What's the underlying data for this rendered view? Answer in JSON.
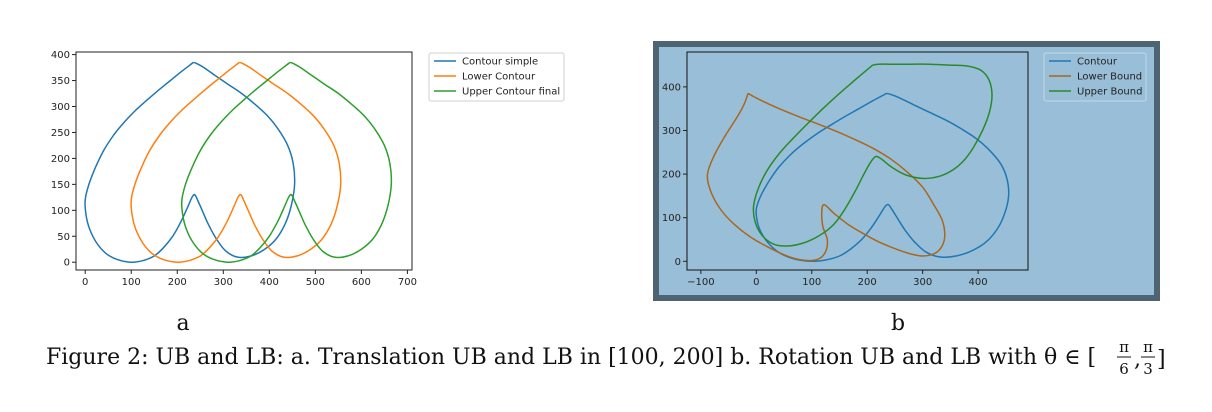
{
  "colors": {
    "blue": "#1f77b4",
    "orange": "#ff7f0e",
    "green": "#2ca02c",
    "brown": "#a8671e",
    "darkgreen": "#2a8a2a",
    "panel_b_bg": "#99bfd8",
    "panel_b_frame": "#4f6473"
  },
  "panel_a": {
    "letter": "a",
    "legend": [
      "Contour simple",
      "Lower Contour",
      "Upper Contour final"
    ]
  },
  "panel_b": {
    "letter": "b",
    "legend": [
      "Contour",
      "Lower Bound",
      "Upper Bound"
    ]
  },
  "caption": {
    "text": "Figure 2: UB and LB: a. Translation UB and LB in [100, 200] b. Rotation UB and LB with θ ∈ [",
    "frac1_num": "π",
    "frac1_den": "6",
    "sep": ",",
    "frac2_num": "π",
    "frac2_den": "3",
    "close": "]"
  },
  "chart_data": [
    {
      "type": "line",
      "xlim": [
        -20,
        710
      ],
      "ylim": [
        -15,
        405
      ],
      "xticks": [
        0,
        100,
        200,
        300,
        400,
        500,
        600,
        700
      ],
      "yticks": [
        0,
        50,
        100,
        150,
        200,
        250,
        300,
        350,
        400
      ],
      "grid": false,
      "legend_position": "outside-right",
      "series": [
        {
          "name": "Contour simple",
          "color": "blue",
          "x": [
            235,
            210,
            185,
            160,
            135,
            110,
            85,
            62,
            40,
            22,
            8,
            0,
            2,
            10,
            25,
            45,
            70,
            100,
            125,
            150,
            170,
            190,
            208,
            222,
            232,
            238,
            245,
            255,
            268,
            285,
            305,
            330,
            360,
            390,
            415,
            435,
            448,
            455,
            452,
            440,
            418,
            395,
            368,
            340,
            310,
            282,
            258,
            242,
            235
          ],
          "y": [
            385,
            368,
            350,
            332,
            313,
            293,
            270,
            245,
            215,
            182,
            150,
            120,
            90,
            63,
            37,
            17,
            5,
            0,
            3,
            12,
            28,
            50,
            78,
            105,
            125,
            130,
            118,
            98,
            72,
            45,
            22,
            10,
            12,
            25,
            45,
            75,
            110,
            150,
            190,
            225,
            258,
            283,
            305,
            325,
            343,
            360,
            375,
            383,
            385
          ]
        },
        {
          "name": "Lower Contour",
          "color": "orange",
          "x": [
            335,
            310,
            285,
            260,
            235,
            210,
            185,
            162,
            140,
            122,
            108,
            100,
            102,
            110,
            125,
            145,
            170,
            200,
            225,
            250,
            270,
            290,
            308,
            322,
            332,
            338,
            345,
            355,
            368,
            385,
            405,
            430,
            460,
            490,
            515,
            535,
            548,
            555,
            552,
            540,
            518,
            495,
            468,
            440,
            410,
            382,
            358,
            342,
            335
          ],
          "y": [
            385,
            368,
            350,
            332,
            313,
            293,
            270,
            245,
            215,
            182,
            150,
            120,
            90,
            63,
            37,
            17,
            5,
            0,
            3,
            12,
            28,
            50,
            78,
            105,
            125,
            130,
            118,
            98,
            72,
            45,
            22,
            10,
            12,
            25,
            45,
            75,
            110,
            150,
            190,
            225,
            258,
            283,
            305,
            325,
            343,
            360,
            375,
            383,
            385
          ]
        },
        {
          "name": "Upper Contour final",
          "color": "green",
          "x": [
            445,
            420,
            395,
            370,
            345,
            320,
            295,
            272,
            250,
            232,
            218,
            210,
            212,
            220,
            235,
            255,
            280,
            310,
            335,
            360,
            380,
            400,
            418,
            432,
            442,
            448,
            455,
            465,
            478,
            495,
            515,
            540,
            570,
            600,
            625,
            645,
            658,
            665,
            662,
            650,
            628,
            605,
            578,
            550,
            520,
            492,
            468,
            452,
            445
          ],
          "y": [
            385,
            368,
            350,
            332,
            313,
            293,
            270,
            245,
            215,
            182,
            150,
            120,
            90,
            63,
            37,
            17,
            5,
            0,
            3,
            12,
            28,
            50,
            78,
            105,
            125,
            130,
            118,
            98,
            72,
            45,
            22,
            10,
            12,
            25,
            45,
            75,
            110,
            150,
            190,
            225,
            258,
            283,
            305,
            325,
            343,
            360,
            375,
            383,
            385
          ]
        }
      ]
    },
    {
      "type": "line",
      "xlim": [
        -125,
        490
      ],
      "ylim": [
        -20,
        480
      ],
      "xticks": [
        -100,
        0,
        100,
        200,
        300,
        400
      ],
      "yticks": [
        0,
        100,
        200,
        300,
        400
      ],
      "grid": false,
      "legend_position": "top-right",
      "series": [
        {
          "name": "Contour",
          "color": "blue",
          "x": [
            235,
            210,
            185,
            160,
            135,
            110,
            85,
            62,
            40,
            22,
            8,
            0,
            2,
            10,
            25,
            45,
            70,
            100,
            125,
            150,
            170,
            190,
            208,
            222,
            232,
            238,
            245,
            255,
            268,
            285,
            305,
            330,
            360,
            390,
            415,
            435,
            448,
            455,
            452,
            440,
            418,
            395,
            368,
            340,
            310,
            282,
            258,
            242,
            235
          ],
          "y": [
            385,
            368,
            350,
            332,
            313,
            293,
            270,
            245,
            215,
            182,
            150,
            120,
            90,
            63,
            37,
            17,
            5,
            0,
            3,
            12,
            28,
            50,
            78,
            105,
            125,
            130,
            118,
            98,
            72,
            45,
            22,
            10,
            12,
            25,
            45,
            75,
            110,
            150,
            190,
            225,
            258,
            283,
            305,
            325,
            343,
            360,
            375,
            383,
            385
          ]
        },
        {
          "name": "Lower Bound",
          "color": "brown",
          "x": [
            -15,
            -22,
            -35,
            -55,
            -75,
            -88,
            -82,
            -65,
            -40,
            -10,
            25,
            60,
            90,
            112,
            125,
            128,
            120,
            118,
            122,
            140,
            165,
            195,
            220,
            248,
            275,
            300,
            322,
            335,
            340,
            335,
            320,
            300,
            272,
            242,
            212,
            180,
            148,
            115,
            80,
            45,
            15,
            -5,
            -15
          ],
          "y": [
            385,
            360,
            330,
            290,
            245,
            200,
            160,
            120,
            85,
            55,
            30,
            10,
            2,
            5,
            22,
            50,
            80,
            110,
            130,
            110,
            85,
            62,
            45,
            30,
            18,
            12,
            18,
            35,
            60,
            95,
            130,
            170,
            205,
            235,
            258,
            278,
            296,
            313,
            330,
            348,
            365,
            378,
            385
          ]
        },
        {
          "name": "Upper Bound",
          "color": "darkgreen",
          "x": [
            210,
            180,
            150,
            120,
            92,
            65,
            40,
            18,
            3,
            -5,
            -2,
            10,
            30,
            55,
            85,
            115,
            140,
            160,
            178,
            192,
            205,
            215,
            225,
            245,
            270,
            300,
            330,
            355,
            375,
            392,
            408,
            420,
            425,
            420,
            405,
            380,
            348,
            312,
            278,
            245,
            220,
            210
          ],
          "y": [
            450,
            418,
            385,
            350,
            315,
            280,
            245,
            205,
            165,
            125,
            90,
            60,
            40,
            35,
            42,
            60,
            85,
            120,
            160,
            195,
            225,
            240,
            235,
            215,
            198,
            190,
            195,
            210,
            232,
            262,
            300,
            340,
            380,
            415,
            438,
            448,
            450,
            452,
            452,
            452,
            452,
            450
          ]
        }
      ]
    }
  ]
}
